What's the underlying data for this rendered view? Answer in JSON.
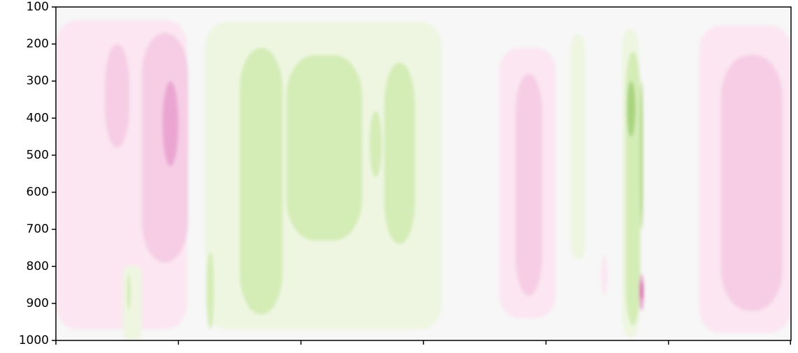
{
  "chart_data": {
    "type": "heatmap",
    "title": "",
    "xlabel": "",
    "ylabel": "",
    "y_axis": {
      "inverted": true,
      "range": [
        100,
        1000
      ],
      "ticks": [
        100,
        200,
        300,
        400,
        500,
        600,
        700,
        800,
        900,
        1000
      ],
      "tick_labels": [
        "100",
        "200",
        "300",
        "400",
        "500",
        "600",
        "700",
        "800",
        "900",
        "1000"
      ]
    },
    "x_axis": {
      "range": [
        0,
        6
      ],
      "ticks": [
        0,
        1,
        2,
        3,
        4,
        5,
        6
      ],
      "tick_labels": []
    },
    "grid": false,
    "legend": "none",
    "colormap": "PiYG",
    "colors": {
      "background": "#f7f7f7",
      "pink_1": "#fbe6f1",
      "pink_2": "#f6cde5",
      "pink_3": "#eaa6d1",
      "pink_4": "#d0589e",
      "green_1": "#eef6e1",
      "green_2": "#d4ecb6",
      "green_3": "#a8d47f",
      "axis": "#000000"
    },
    "levels": [
      -3,
      -2,
      -1,
      0,
      1,
      2,
      3,
      4
    ],
    "regions": [
      {
        "level": 1,
        "x": [
          0.0,
          1.07
        ],
        "y": [
          135,
          970
        ],
        "shape": "column"
      },
      {
        "level": 2,
        "x": [
          0.4,
          0.6
        ],
        "y": [
          200,
          480
        ],
        "shape": "blob"
      },
      {
        "level": 2,
        "x": [
          0.7,
          1.08
        ],
        "y": [
          170,
          790
        ],
        "shape": "blob"
      },
      {
        "level": 3,
        "x": [
          0.87,
          1.0
        ],
        "y": [
          300,
          530
        ],
        "shape": "blob"
      },
      {
        "level": 1,
        "x": [
          0.0,
          0.1
        ],
        "y": [
          300,
          880
        ],
        "shape": "blob"
      },
      {
        "level": -1,
        "x": [
          1.22,
          3.15
        ],
        "y": [
          140,
          970
        ],
        "shape": "column"
      },
      {
        "level": -2,
        "x": [
          1.5,
          1.85
        ],
        "y": [
          210,
          930
        ],
        "shape": "blob"
      },
      {
        "level": -2,
        "x": [
          1.88,
          2.5
        ],
        "y": [
          230,
          730
        ],
        "shape": "blob"
      },
      {
        "level": -2,
        "x": [
          2.68,
          2.93
        ],
        "y": [
          250,
          740
        ],
        "shape": "blob"
      },
      {
        "level": -2,
        "x": [
          2.56,
          2.66
        ],
        "y": [
          380,
          560
        ],
        "shape": "blob"
      },
      {
        "level": -2,
        "x": [
          1.23,
          1.29
        ],
        "y": [
          760,
          970
        ],
        "shape": "blob"
      },
      {
        "level": 1,
        "x": [
          3.62,
          4.08
        ],
        "y": [
          210,
          940
        ],
        "shape": "column"
      },
      {
        "level": 2,
        "x": [
          3.75,
          3.97
        ],
        "y": [
          280,
          880
        ],
        "shape": "blob"
      },
      {
        "level": -1,
        "x": [
          4.2,
          4.32
        ],
        "y": [
          175,
          780
        ],
        "shape": "column"
      },
      {
        "level": -1,
        "x": [
          4.62,
          4.76
        ],
        "y": [
          160,
          990
        ],
        "shape": "column"
      },
      {
        "level": -2,
        "x": [
          4.65,
          4.77
        ],
        "y": [
          220,
          960
        ],
        "shape": "blob"
      },
      {
        "level": -3,
        "x": [
          4.66,
          4.73
        ],
        "y": [
          300,
          450
        ],
        "shape": "blob"
      },
      {
        "level": -3,
        "x": [
          4.77,
          4.79
        ],
        "y": [
          300,
          700
        ],
        "shape": "blob"
      },
      {
        "level": 3,
        "x": [
          4.76,
          4.8
        ],
        "y": [
          820,
          920
        ],
        "shape": "blob"
      },
      {
        "level": 4,
        "x": [
          4.77,
          4.79
        ],
        "y": [
          840,
          890
        ],
        "shape": "blob"
      },
      {
        "level": 1,
        "x": [
          5.25,
          6.0
        ],
        "y": [
          150,
          980
        ],
        "shape": "column"
      },
      {
        "level": 2,
        "x": [
          5.43,
          5.93
        ],
        "y": [
          230,
          920
        ],
        "shape": "blob"
      },
      {
        "level": 1,
        "x": [
          4.45,
          4.5
        ],
        "y": [
          770,
          880
        ],
        "shape": "blob"
      },
      {
        "level": -1,
        "x": [
          0.55,
          0.7
        ],
        "y": [
          800,
          1000
        ],
        "shape": "column"
      },
      {
        "level": -2,
        "x": [
          0.58,
          0.61
        ],
        "y": [
          820,
          920
        ],
        "shape": "blob"
      }
    ]
  }
}
